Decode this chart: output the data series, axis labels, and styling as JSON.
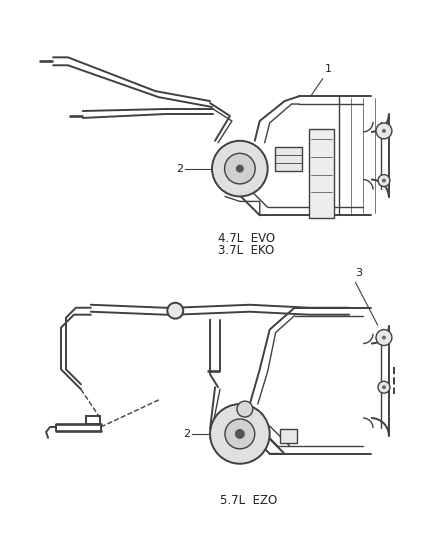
{
  "bg_color": "#ffffff",
  "line_color": "#404040",
  "text_color": "#222222",
  "label1_text": "4.7L  EVO",
  "label2_text": "3.7L  EKO",
  "label3_text": "5.7L  EZO",
  "callout1": "1",
  "callout2_upper": "2",
  "callout2_lower": "2",
  "callout3": "3",
  "lw": 1.4,
  "lw2": 1.0
}
